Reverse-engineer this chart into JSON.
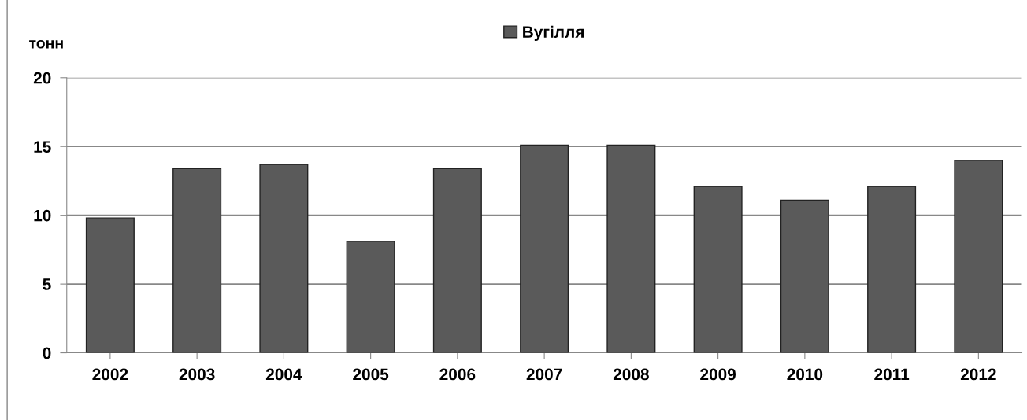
{
  "chart_data": {
    "type": "bar",
    "ylabel": "тонн",
    "categories": [
      "2002",
      "2003",
      "2004",
      "2005",
      "2006",
      "2007",
      "2008",
      "2009",
      "2010",
      "2011",
      "2012"
    ],
    "series": [
      {
        "name": "Вугілля",
        "color": "#5a5a5a",
        "values": [
          9.8,
          13.4,
          13.7,
          8.1,
          13.4,
          15.1,
          15.1,
          12.1,
          11.1,
          12.1,
          14.0
        ]
      }
    ],
    "ylim": [
      0,
      20
    ],
    "yticks": [
      0,
      5,
      10,
      15,
      20
    ],
    "grid": "y",
    "legend": "top"
  }
}
